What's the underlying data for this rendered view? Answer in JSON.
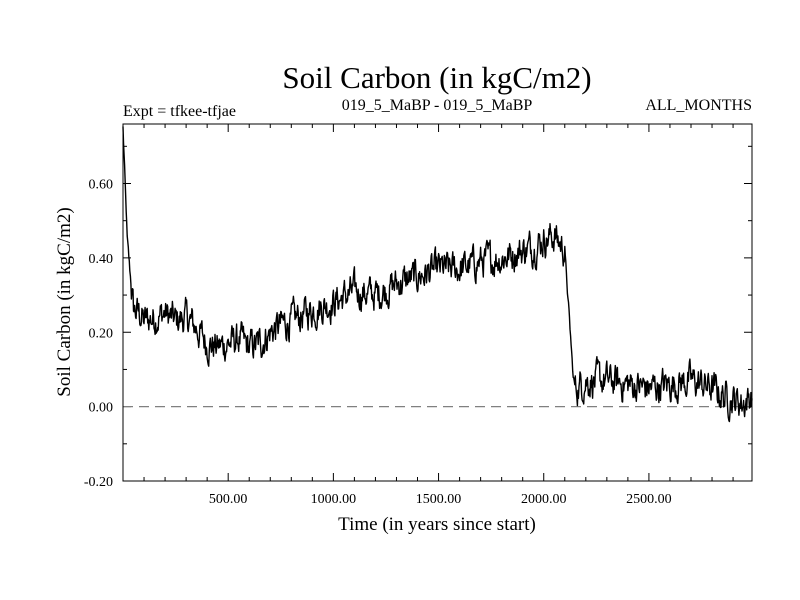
{
  "chart_data": {
    "type": "line",
    "title": "Soil Carbon (in kgC/m2)",
    "subtitle_left": "Expt = tfkee-tfjae",
    "subtitle_center": "019_5_MaBP - 019_5_MaBP",
    "subtitle_right": "ALL_MONTHS",
    "xlabel": "Time (in years since start)",
    "ylabel": "Soil Carbon (in kgC/m2)",
    "xlim": [
      0,
      2990
    ],
    "ylim": [
      -0.2,
      0.76
    ],
    "x_ticks": [
      500,
      1000,
      1500,
      2000,
      2500
    ],
    "x_tick_labels": [
      "500.00",
      "1000.00",
      "1500.00",
      "2000.00",
      "2500.00"
    ],
    "y_ticks": [
      -0.2,
      0.0,
      0.2,
      0.4,
      0.6
    ],
    "y_tick_labels": [
      "-0.20",
      "0.00",
      "0.20",
      "0.40",
      "0.60"
    ],
    "reference_line": {
      "y": 0.0,
      "style": "dashed"
    },
    "grid": false,
    "line_color": "#000000",
    "reference_line_color": "#808080",
    "series": [
      {
        "x": [
          0,
          10,
          20,
          35,
          50,
          80,
          100,
          150,
          200,
          250,
          300,
          350,
          400,
          450,
          500,
          550,
          600,
          650,
          700,
          750,
          800,
          900,
          1000,
          1100,
          1200,
          1300,
          1400,
          1500,
          1600,
          1700,
          1800,
          1900,
          1950,
          2000,
          2050,
          2100,
          2120,
          2140,
          2150,
          2180,
          2200,
          2300,
          2400,
          2500,
          2600,
          2700,
          2800,
          2850,
          2900,
          2950,
          2990
        ],
        "y": [
          0.75,
          0.6,
          0.45,
          0.35,
          0.26,
          0.25,
          0.23,
          0.24,
          0.25,
          0.23,
          0.24,
          0.21,
          0.17,
          0.16,
          0.17,
          0.18,
          0.16,
          0.17,
          0.2,
          0.22,
          0.23,
          0.26,
          0.28,
          0.31,
          0.3,
          0.33,
          0.35,
          0.37,
          0.37,
          0.39,
          0.4,
          0.42,
          0.43,
          0.45,
          0.46,
          0.42,
          0.25,
          0.08,
          0.05,
          0.06,
          0.07,
          0.07,
          0.06,
          0.05,
          0.06,
          0.07,
          0.05,
          0.03,
          0.02,
          0.01,
          0.03
        ]
      }
    ]
  }
}
